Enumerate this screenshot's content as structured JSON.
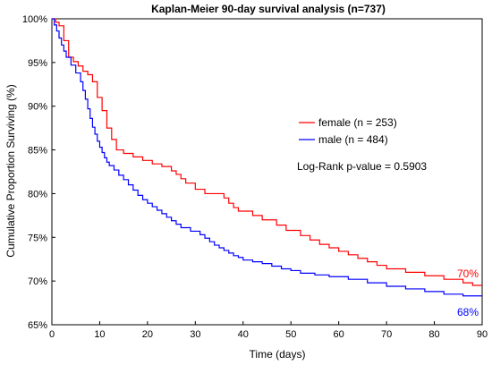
{
  "chart_data": {
    "type": "line",
    "title": "Kaplan-Meier 90-day survival analysis (n=737)",
    "xlabel": "Time (days)",
    "ylabel": "Cumulative Proportion Surviving (%)",
    "xlim": [
      0,
      90
    ],
    "ylim": [
      65,
      100
    ],
    "xticks": [
      0,
      10,
      20,
      30,
      40,
      50,
      60,
      70,
      80,
      90
    ],
    "xtick_labels": [
      "0",
      "10",
      "20",
      "30",
      "40",
      "50",
      "60",
      "70",
      "80",
      "90"
    ],
    "yticks": [
      65,
      70,
      75,
      80,
      85,
      90,
      95,
      100
    ],
    "ytick_labels": [
      "65%",
      "70%",
      "75%",
      "80%",
      "85%",
      "90%",
      "95%",
      "100%"
    ],
    "grid": false,
    "legend_position": "right",
    "annotation": "Log-Rank p-value = 0.5903",
    "series": [
      {
        "name": "female (n = 253)",
        "color": "#ff0000",
        "end_label": "70%",
        "x": [
          0,
          0.8,
          1.5,
          2.5,
          3.5,
          4.5,
          5.5,
          6.5,
          7.5,
          8.5,
          9.5,
          10.5,
          11.5,
          12.5,
          13.5,
          15,
          17,
          19,
          21,
          23,
          25,
          26,
          27,
          28,
          30,
          32,
          35,
          36,
          37,
          38,
          39,
          42,
          44,
          47,
          49,
          52,
          54,
          56,
          58,
          60,
          62,
          64,
          66,
          68,
          70,
          74,
          78,
          82,
          86,
          88
        ],
        "y": [
          100,
          99.6,
          99.2,
          97.5,
          95.6,
          95.1,
          94.6,
          94.0,
          93.6,
          92.8,
          91.0,
          89.5,
          87.5,
          86.2,
          85.0,
          84.6,
          84.2,
          83.8,
          83.4,
          83.1,
          82.6,
          82.2,
          81.7,
          81.2,
          80.5,
          80.0,
          80.0,
          79.5,
          78.9,
          78.4,
          78.0,
          77.5,
          77.0,
          76.4,
          75.8,
          75.2,
          74.7,
          74.2,
          73.8,
          73.4,
          73.0,
          72.6,
          72.2,
          71.8,
          71.4,
          71.0,
          70.6,
          70.2,
          69.8,
          69.5
        ]
      },
      {
        "name": "male (n = 484)",
        "color": "#0000ff",
        "end_label": "68%",
        "x": [
          0,
          0.5,
          1,
          1.5,
          2,
          2.5,
          3,
          4,
          5,
          6,
          6.5,
          7,
          7.5,
          8,
          8.5,
          9,
          9.5,
          10,
          10.5,
          11,
          11.5,
          12,
          13,
          14,
          15,
          16,
          17,
          18,
          19,
          20,
          21,
          22,
          23,
          24,
          25,
          26,
          27,
          29,
          31,
          32,
          33,
          34,
          35,
          36,
          37,
          38,
          39,
          40,
          42,
          44,
          46,
          48,
          50,
          52,
          55,
          58,
          62,
          66,
          70,
          74,
          78,
          82,
          86
        ],
        "y": [
          100,
          99.3,
          98.6,
          97.8,
          97.0,
          96.3,
          95.6,
          94.7,
          93.8,
          92.8,
          91.8,
          90.8,
          89.7,
          88.6,
          87.6,
          86.8,
          86.0,
          85.3,
          84.7,
          84.1,
          83.6,
          83.2,
          82.7,
          82.1,
          81.6,
          81.0,
          80.4,
          79.8,
          79.3,
          78.9,
          78.5,
          78.1,
          77.7,
          77.3,
          76.9,
          76.5,
          76.1,
          75.7,
          75.3,
          74.9,
          74.5,
          74.1,
          73.8,
          73.5,
          73.2,
          72.9,
          72.7,
          72.4,
          72.2,
          72.0,
          71.7,
          71.4,
          71.2,
          70.9,
          70.7,
          70.5,
          70.2,
          69.8,
          69.4,
          69.1,
          68.8,
          68.5,
          68.3
        ]
      }
    ]
  }
}
